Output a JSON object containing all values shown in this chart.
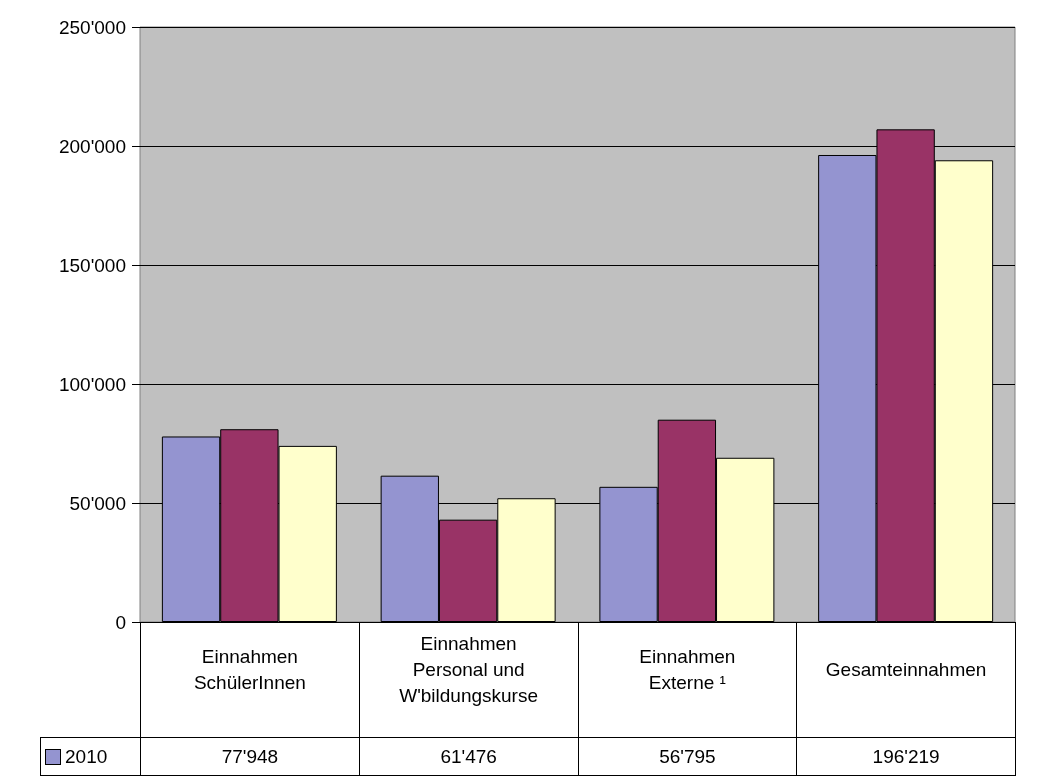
{
  "chart_data": {
    "type": "bar",
    "categories": [
      "Einnahmen SchülerInnen",
      "Einnahmen Personal und W'bildungskurse",
      "Einnahmen Externe ¹",
      "Gesamteinnahmen"
    ],
    "series": [
      {
        "name": "2010",
        "color": "#9494d0",
        "values": [
          77948,
          61476,
          56795,
          196219
        ],
        "value_labels": [
          "77'948",
          "61'476",
          "56'795",
          "196'219"
        ]
      },
      {
        "color": "#993366",
        "values": [
          81000,
          43000,
          85000,
          207000
        ]
      },
      {
        "color": "#ffffcc",
        "values": [
          74000,
          52000,
          69000,
          194000
        ]
      }
    ],
    "ylim": [
      0,
      250000
    ],
    "yticks": [
      {
        "value": 0,
        "label": "0"
      },
      {
        "value": 50000,
        "label": "50'000"
      },
      {
        "value": 100000,
        "label": "100'000"
      },
      {
        "value": 150000,
        "label": "150'000"
      },
      {
        "value": 200000,
        "label": "200'000"
      },
      {
        "value": 250000,
        "label": "250'000"
      }
    ],
    "grid": "y"
  }
}
